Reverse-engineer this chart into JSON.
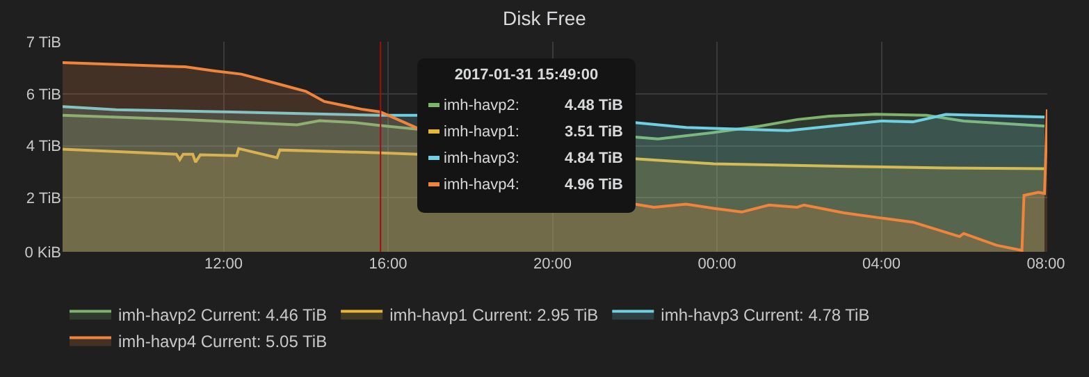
{
  "chart_data": {
    "type": "area",
    "title": "Disk Free",
    "xlim": [
      "2017-01-31T08:05",
      "2017-02-01T08:02"
    ],
    "xticks": [
      {
        "value": "2017-01-31T12:00",
        "label": "12:00"
      },
      {
        "value": "2017-01-31T16:00",
        "label": "16:00"
      },
      {
        "value": "2017-01-31T20:00",
        "label": "20:00"
      },
      {
        "value": "2017-02-01T00:00",
        "label": "00:00"
      },
      {
        "value": "2017-02-01T04:00",
        "label": "04:00"
      },
      {
        "value": "2017-02-01T08:00",
        "label": "08:00"
      }
    ],
    "ylim": [
      0,
      7.45
    ],
    "yticks": [
      {
        "value": 0,
        "label": "0 KiB"
      },
      {
        "value": 1.92,
        "label": "2 TiB"
      },
      {
        "value": 3.76,
        "label": "4 TiB"
      },
      {
        "value": 5.6,
        "label": "6 TiB"
      },
      {
        "value": 7.45,
        "label": "7 TiB"
      }
    ],
    "grid": true,
    "legend": "bottom",
    "series": [
      {
        "name": "imh-havp2 Current: 4.46 TiB",
        "color": "#7eb26d",
        "x": [
          "2017-01-31T08:05",
          "2017-01-31T11:04",
          "2017-01-31T13:47",
          "2017-01-31T14:20",
          "2017-01-31T15:08",
          "2017-01-31T15:49",
          "2017-01-31T16:43",
          "2017-01-31T19:00",
          "2017-01-31T22:00",
          "2017-01-31T22:34",
          "2017-01-31T23:55",
          "2017-02-01T01:03",
          "2017-02-01T01:57",
          "2017-02-01T02:44",
          "2017-02-01T03:52",
          "2017-02-01T05:06",
          "2017-02-01T06:00",
          "2017-02-01T07:58"
        ],
        "values": [
          4.84,
          4.69,
          4.5,
          4.65,
          4.59,
          4.48,
          4.35,
          null,
          4.07,
          4.0,
          4.23,
          4.46,
          4.69,
          4.81,
          4.88,
          4.84,
          4.64,
          4.46
        ]
      },
      {
        "name": "imh-havp1 Current: 2.95 TiB",
        "color": "#eab839",
        "x": [
          "2017-01-31T08:05",
          "2017-01-31T10:51",
          "2017-01-31T10:56",
          "2017-01-31T11:01",
          "2017-01-31T11:15",
          "2017-01-31T11:19",
          "2017-01-31T11:26",
          "2017-01-31T12:19",
          "2017-01-31T12:22",
          "2017-01-31T13:18",
          "2017-01-31T13:22",
          "2017-01-31T15:49",
          "2017-01-31T16:43",
          "2017-01-31T19:00",
          "2017-01-31T22:00",
          "2017-01-31T23:55",
          "2017-02-01T03:12",
          "2017-02-01T05:34",
          "2017-02-01T07:58"
        ],
        "values": [
          3.64,
          3.46,
          3.27,
          3.46,
          3.46,
          3.18,
          3.44,
          3.41,
          3.66,
          3.34,
          3.61,
          3.51,
          3.46,
          null,
          3.3,
          3.12,
          3.03,
          2.97,
          2.95
        ]
      },
      {
        "name": "imh-havp3 Current: 4.78 TiB",
        "color": "#6ed0e0",
        "x": [
          "2017-01-31T08:05",
          "2017-01-31T09:23",
          "2017-01-31T12:12",
          "2017-01-31T15:49",
          "2017-01-31T16:43",
          "2017-01-31T19:00",
          "2017-01-31T22:00",
          "2017-01-31T23:15",
          "2017-02-01T01:44",
          "2017-02-01T03:59",
          "2017-02-01T04:46",
          "2017-02-01T05:34",
          "2017-02-01T07:58"
        ],
        "values": [
          5.15,
          5.04,
          4.96,
          4.84,
          4.84,
          null,
          4.58,
          4.41,
          4.3,
          4.64,
          4.61,
          4.87,
          4.78
        ]
      },
      {
        "name": "imh-havp4 Current: 5.05 TiB",
        "color": "#ef843c",
        "x": [
          "2017-01-31T08:05",
          "2017-01-31T11:04",
          "2017-01-31T11:45",
          "2017-01-31T12:26",
          "2017-01-31T13:20",
          "2017-01-31T14:00",
          "2017-01-31T14:27",
          "2017-01-31T15:21",
          "2017-01-31T15:49",
          "2017-01-31T16:43",
          "2017-01-31T19:00",
          "2017-01-31T22:00",
          "2017-01-31T22:28",
          "2017-01-31T23:15",
          "2017-01-31T23:55",
          "2017-02-01T00:36",
          "2017-02-01T01:16",
          "2017-02-01T01:57",
          "2017-02-01T02:07",
          "2017-02-01T03:05",
          "2017-02-01T03:59",
          "2017-02-01T04:46",
          "2017-02-01T05:54",
          "2017-02-01T06:00",
          "2017-02-01T06:48",
          "2017-02-01T07:25",
          "2017-02-01T07:28",
          "2017-02-01T07:49",
          "2017-02-01T07:58",
          "2017-02-01T08:02"
        ],
        "values": [
          6.71,
          6.56,
          6.42,
          6.3,
          5.95,
          5.69,
          5.33,
          5.06,
          4.96,
          4.38,
          null,
          1.69,
          1.58,
          1.69,
          1.54,
          1.41,
          1.66,
          1.58,
          1.66,
          1.38,
          1.2,
          1.05,
          0.54,
          0.65,
          0.23,
          0.05,
          2.0,
          2.11,
          2.07,
          5.05
        ]
      }
    ],
    "ref_lines": [
      {
        "axis": "x",
        "value": "2017-01-31T15:49",
        "color": "#a01010"
      }
    ],
    "annotations": [
      "2017-01-31 15:49:00",
      "imh-havp2:",
      "4.48 TiB",
      "imh-havp1:",
      "3.51 TiB",
      "imh-havp3:",
      "4.84 TiB",
      "imh-havp4:",
      "4.96 TiB"
    ]
  }
}
